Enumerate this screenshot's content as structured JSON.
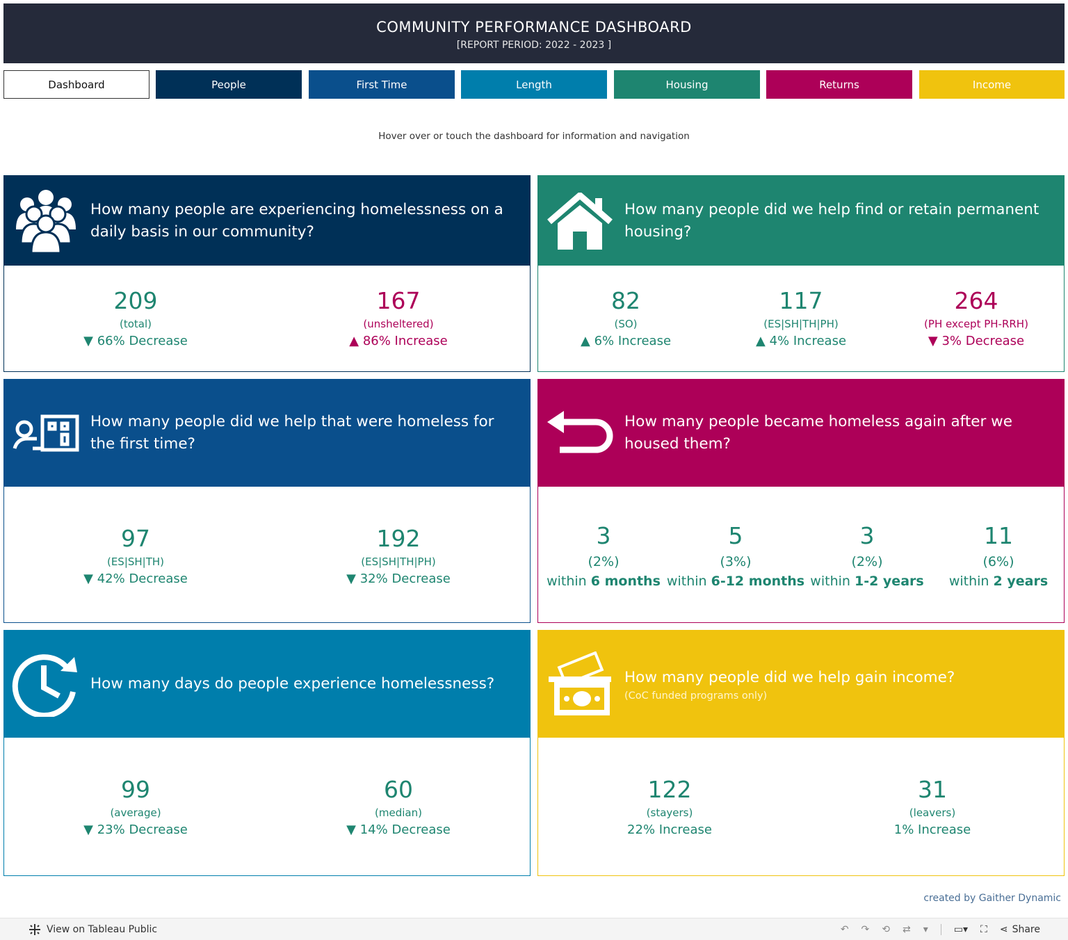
{
  "header": {
    "title": "COMMUNITY PERFORMANCE DASHBOARD",
    "period": "[REPORT PERIOD: 2022 - 2023 ]"
  },
  "nav": [
    {
      "label": "Dashboard",
      "color": "#ffffff"
    },
    {
      "label": "People",
      "color": "#003057"
    },
    {
      "label": "First Time",
      "color": "#0a4f8c"
    },
    {
      "label": "Length",
      "color": "#007eac"
    },
    {
      "label": "Housing",
      "color": "#1e8570"
    },
    {
      "label": "Returns",
      "color": "#ad0058"
    },
    {
      "label": "Income",
      "color": "#f0c30e"
    }
  ],
  "hint": "Hover over or touch the dashboard for information and navigation",
  "colors": {
    "people": "#003057",
    "first_time": "#0a4f8c",
    "length": "#007eac",
    "housing": "#1e8570",
    "returns": "#ad0058",
    "income": "#f0c30e",
    "teal_text": "#1e8570",
    "magenta_text": "#ad0058"
  },
  "cards": {
    "people": {
      "icon": "people-group-icon",
      "question": "How many people are experiencing homelessness on a daily basis in our community?",
      "metrics": [
        {
          "value": "209",
          "label": "(total)",
          "arrow": "▼",
          "change": "66% Decrease"
        },
        {
          "value": "167",
          "label": "(unsheltered)",
          "arrow": "▲",
          "change": "86% Increase"
        }
      ]
    },
    "housing": {
      "icon": "house-icon",
      "question": "How many people did we help find or retain permanent housing?",
      "metrics": [
        {
          "value": "82",
          "label": "(SO)",
          "arrow": "▲",
          "change": "6% Increase"
        },
        {
          "value": "117",
          "label": "(ES|SH|TH|PH)",
          "arrow": "▲",
          "change": "4% Increase"
        },
        {
          "value": "264",
          "label": "(PH except PH-RRH)",
          "arrow": "▼",
          "change": "3% Decrease"
        }
      ]
    },
    "first_time": {
      "icon": "person-building-icon",
      "question": "How many people did we help that were homeless for the first time?",
      "metrics": [
        {
          "value": "97",
          "label": "(ES|SH|TH)",
          "arrow": "▼",
          "change": "42% Decrease"
        },
        {
          "value": "192",
          "label": "(ES|SH|TH|PH)",
          "arrow": "▼",
          "change": "32% Decrease"
        }
      ]
    },
    "returns": {
      "icon": "return-arrow-icon",
      "question": "How many people became homeless again after we housed them?",
      "metrics": [
        {
          "value": "3",
          "pct": "(2%)",
          "within": "within",
          "period": "6 months"
        },
        {
          "value": "5",
          "pct": "(3%)",
          "within": "within",
          "period": "6-12 months"
        },
        {
          "value": "3",
          "pct": "(2%)",
          "within": "within",
          "period": "1-2 years"
        },
        {
          "value": "11",
          "pct": "(6%)",
          "within": "within",
          "period": "2 years"
        }
      ]
    },
    "length": {
      "icon": "clock-icon",
      "question": "How many days do people experience homelessness?",
      "metrics": [
        {
          "value": "99",
          "label": "(average)",
          "arrow": "▼",
          "change": "23% Decrease"
        },
        {
          "value": "60",
          "label": "(median)",
          "arrow": "▼",
          "change": "14% Decrease"
        }
      ]
    },
    "income": {
      "icon": "money-icon",
      "question": "How many people did we help gain income?",
      "subtitle": "(CoC funded programs only)",
      "metrics": [
        {
          "value": "122",
          "label": "(stayers)",
          "change": "22% Increase"
        },
        {
          "value": "31",
          "label": "(leavers)",
          "change": "1% Increase"
        }
      ]
    }
  },
  "credit": "created by Gaither Dynamic",
  "toolbar": {
    "view_label": "View on Tableau Public",
    "share_label": "Share"
  }
}
